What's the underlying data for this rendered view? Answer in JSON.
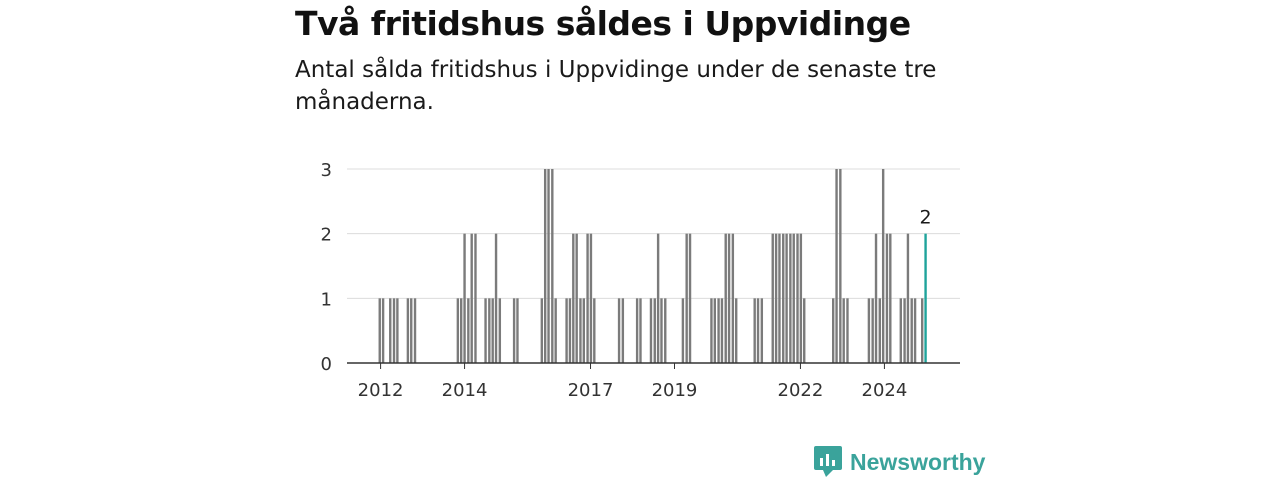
{
  "title": "Två fritidshus såldes i Uppvidinge",
  "subtitle": "Antal sålda fritidshus i Uppvidinge under de senaste tre månaderna.",
  "brand": {
    "name": "Newsworthy",
    "icon": "newsworthy-logo-icon"
  },
  "colors": {
    "bar": "#7b7b7b",
    "highlight": "#1fa39b",
    "grid": "#dcdcdc",
    "axis": "#333333"
  },
  "chart_data": {
    "type": "bar",
    "ylim": [
      0,
      3
    ],
    "yticks": [
      0,
      1,
      2,
      3
    ],
    "xlim": [
      2011.2,
      2025.8
    ],
    "xticks": [
      {
        "value": 2012.0,
        "label": "2012"
      },
      {
        "value": 2014.0,
        "label": "2014"
      },
      {
        "value": 2017.0,
        "label": "2017"
      },
      {
        "value": 2019.0,
        "label": "2019"
      },
      {
        "value": 2022.0,
        "label": "2022"
      },
      {
        "value": 2024.0,
        "label": "2024"
      }
    ],
    "grid": true,
    "x": [
      2011.98,
      2012.06,
      2012.23,
      2012.32,
      2012.4,
      2012.65,
      2012.73,
      2012.82,
      2013.84,
      2013.92,
      2014.0,
      2014.09,
      2014.17,
      2014.26,
      2014.5,
      2014.59,
      2014.67,
      2014.75,
      2014.84,
      2015.18,
      2015.26,
      2015.84,
      2015.92,
      2016.0,
      2016.09,
      2016.17,
      2016.43,
      2016.51,
      2016.59,
      2016.67,
      2016.76,
      2016.84,
      2016.93,
      2017.01,
      2017.09,
      2017.68,
      2017.77,
      2018.11,
      2018.19,
      2018.44,
      2018.53,
      2018.61,
      2018.69,
      2018.78,
      2019.2,
      2019.29,
      2019.37,
      2019.88,
      2019.96,
      2020.05,
      2020.13,
      2020.22,
      2020.3,
      2020.39,
      2020.47,
      2020.91,
      2020.99,
      2021.08,
      2021.34,
      2021.42,
      2021.5,
      2021.59,
      2021.67,
      2021.76,
      2021.84,
      2021.93,
      2022.01,
      2022.09,
      2022.78,
      2022.86,
      2022.95,
      2023.03,
      2023.12,
      2023.63,
      2023.72,
      2023.8,
      2023.89,
      2023.97,
      2024.06,
      2024.14,
      2024.39,
      2024.48,
      2024.56,
      2024.65,
      2024.73,
      2024.9,
      2024.98
    ],
    "values": [
      1,
      1,
      1,
      1,
      1,
      1,
      1,
      1,
      1,
      1,
      2,
      1,
      2,
      2,
      1,
      1,
      1,
      2,
      1,
      1,
      1,
      1,
      3,
      3,
      3,
      1,
      1,
      1,
      2,
      2,
      1,
      1,
      2,
      2,
      1,
      1,
      1,
      1,
      1,
      1,
      1,
      2,
      1,
      1,
      1,
      2,
      2,
      1,
      1,
      1,
      1,
      2,
      2,
      2,
      1,
      1,
      1,
      1,
      2,
      2,
      2,
      2,
      2,
      2,
      2,
      2,
      2,
      1,
      1,
      3,
      3,
      1,
      1,
      1,
      1,
      2,
      1,
      3,
      2,
      2,
      1,
      1,
      2,
      1,
      1,
      1,
      2
    ],
    "highlight_index": 86,
    "highlight_label": "2"
  }
}
